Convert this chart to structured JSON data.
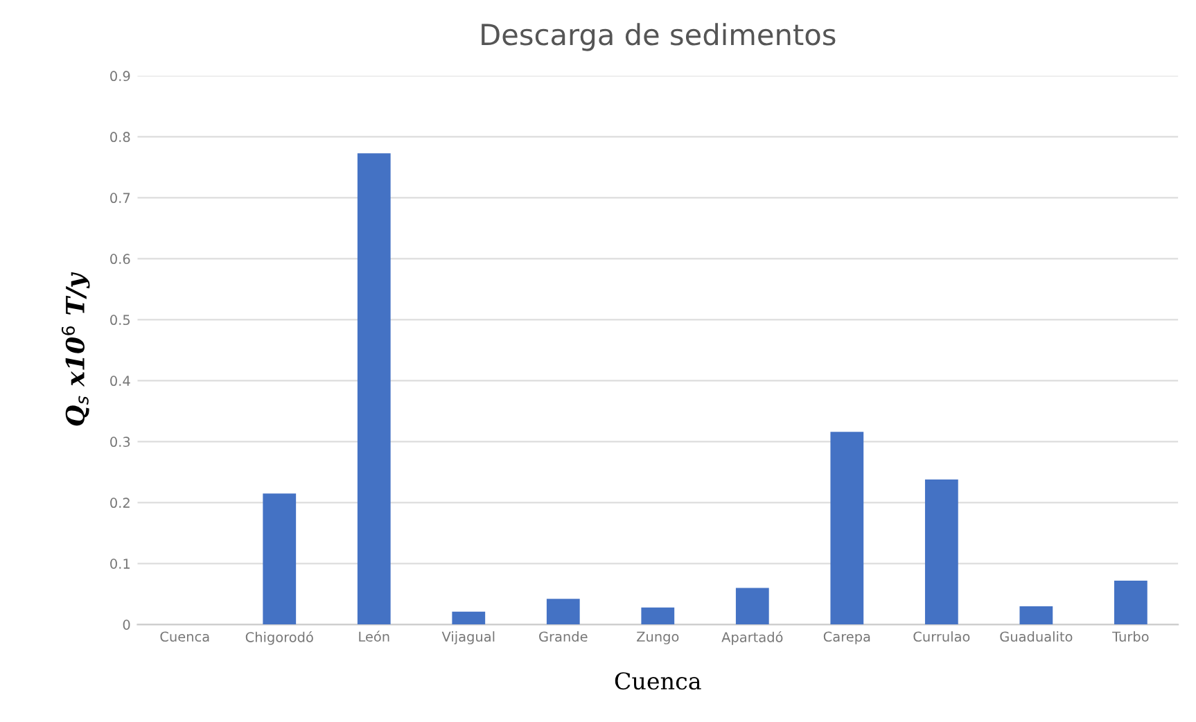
{
  "chart_data": {
    "type": "bar",
    "title": "Descarga de sedimentos",
    "xlabel": "Cuenca",
    "ylabel": "Q$_{s}$ x10$^{6}$ T/y",
    "categories": [
      "Cuenca",
      "Chigorodó",
      "León",
      "Vijagual",
      "Grande",
      "Zungo",
      "Apartadó",
      "Carepa",
      "Currulao",
      "Guadualito",
      "Turbo"
    ],
    "values": [
      0,
      0.215,
      0.773,
      0.021,
      0.042,
      0.028,
      0.06,
      0.316,
      0.238,
      0.03,
      0.072
    ],
    "color": "#4472c4",
    "ylim": [
      0,
      0.9
    ],
    "yticks": [
      0,
      0.1,
      0.2,
      0.3,
      0.4,
      0.5,
      0.6,
      0.7,
      0.8,
      0.9
    ],
    "grid": "y"
  }
}
